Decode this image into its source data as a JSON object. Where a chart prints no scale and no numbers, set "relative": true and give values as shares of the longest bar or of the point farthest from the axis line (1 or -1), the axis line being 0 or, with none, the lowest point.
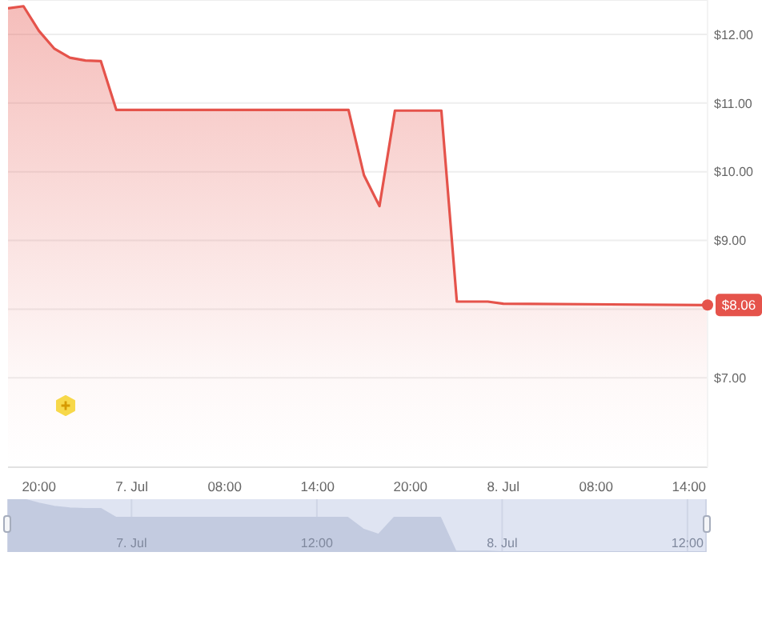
{
  "chart_data": [
    {
      "type": "area",
      "x": [
        "--07-06T18:00",
        "--07-06T19:00",
        "--07-06T20:00",
        "--07-06T21:00",
        "--07-06T22:00",
        "--07-06T23:00",
        "--07-07T00:00",
        "--07-07T01:00",
        "--07-07T16:00",
        "--07-07T17:00",
        "--07-07T18:00",
        "--07-07T19:00",
        "--07-07T22:00",
        "--07-07T23:00",
        "--07-08T01:00",
        "--07-08T02:00",
        "--07-08T15:12"
      ],
      "values": [
        12.38,
        12.41,
        12.05,
        11.79,
        11.66,
        11.62,
        11.61,
        10.9,
        10.9,
        9.95,
        9.5,
        10.89,
        10.89,
        8.11,
        8.11,
        8.08,
        8.06
      ],
      "color": "#e5534b",
      "xlim": [
        "--07-06T18:00",
        "--07-08T15:12"
      ],
      "xticks": [
        {
          "value": "--07-06T20:00",
          "label": "20:00"
        },
        {
          "value": "--07-07T02:00",
          "label": "7. Jul"
        },
        {
          "value": "--07-07T08:00",
          "label": "08:00"
        },
        {
          "value": "--07-07T14:00",
          "label": "14:00"
        },
        {
          "value": "--07-07T20:00",
          "label": "20:00"
        },
        {
          "value": "--07-08T02:00",
          "label": "8. Jul"
        },
        {
          "value": "--07-08T08:00",
          "label": "08:00"
        },
        {
          "value": "--07-08T14:00",
          "label": "14:00"
        }
      ],
      "ylim": [
        5.7,
        12.5
      ],
      "yticks": [
        {
          "value": 7,
          "label": "$7.00"
        },
        {
          "value": 8,
          "label": null
        },
        {
          "value": 9,
          "label": "$9.00"
        },
        {
          "value": 10,
          "label": "$10.00"
        },
        {
          "value": 11,
          "label": "$11.00"
        },
        {
          "value": 12,
          "label": "$12.00"
        }
      ],
      "grid": "y",
      "annotations": [
        {
          "text": "$8.06",
          "x": "--07-08T15:12",
          "y": 8.06
        }
      ]
    },
    {
      "type": "area",
      "relative": true,
      "x": [
        "--07-06T16:00",
        "--07-06T17:00",
        "--07-06T18:00",
        "--07-06T19:00",
        "--07-06T20:00",
        "--07-06T21:00",
        "--07-06T22:00",
        "--07-06T23:00",
        "--07-07T14:00",
        "--07-07T15:00",
        "--07-07T16:00",
        "--07-07T17:00",
        "--07-07T20:00",
        "--07-07T21:00",
        "--07-07T23:00",
        "--07-08T00:00",
        "--07-08T13:12"
      ],
      "values": [
        0.99,
        1,
        0.92,
        0.86,
        0.83,
        0.82,
        0.82,
        0.65,
        0.65,
        0.43,
        0.33,
        0.65,
        0.65,
        0.01,
        0.01,
        0,
        0
      ],
      "color": "#c3cbe0",
      "xlim": [
        "--07-06T16:00",
        "--07-08T13:12"
      ],
      "xticks": [
        {
          "value": "--07-07T00:00",
          "label": "7. Jul"
        },
        {
          "value": "--07-07T12:00",
          "label": "12:00"
        },
        {
          "value": "--07-08T00:00",
          "label": "8. Jul"
        },
        {
          "value": "--07-08T12:00",
          "label": "12:00"
        }
      ],
      "grid": "x"
    }
  ]
}
